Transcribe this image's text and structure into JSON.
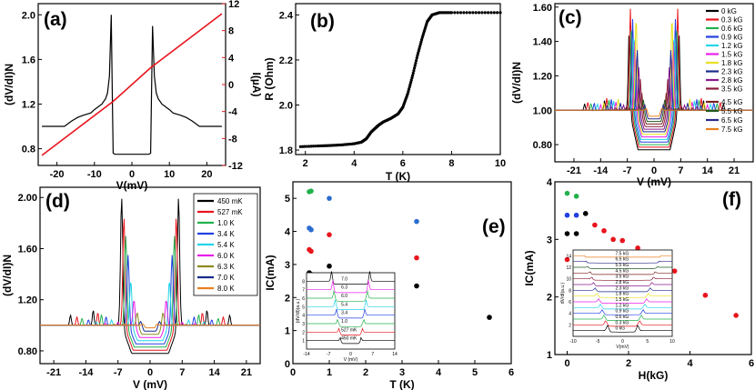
{
  "chart_data": [
    {
      "panel": "(a)",
      "type": "line",
      "xlabel": "V(mV)",
      "ylabel": "(dV/dI)N",
      "y2label": "I(µA)",
      "xlim": [
        -25,
        25
      ],
      "ylim": [
        0.65,
        2.1
      ],
      "y2lim": [
        -12,
        12
      ],
      "xticks": [
        "-20",
        "-10",
        "0",
        "10",
        "20"
      ],
      "yticks": [
        "0.8",
        "1.2",
        "1.6",
        "2.0"
      ],
      "y2ticks": [
        "-12",
        "-8",
        "-4",
        "0",
        "4",
        "8",
        "12"
      ],
      "series": [
        {
          "name": "dV/dI",
          "color": "#000000",
          "x": [
            -24,
            -18,
            -16,
            -14.5,
            -13,
            -11,
            -10,
            -8,
            -7,
            -6.5,
            -6,
            -5.5,
            -5.2,
            -5,
            -4.5,
            -4,
            4,
            4.5,
            5,
            5.2,
            5.5,
            6,
            6.5,
            7,
            8,
            10,
            11,
            13,
            14.5,
            16,
            18,
            24
          ],
          "y": [
            1.0,
            1.0,
            1.05,
            1.08,
            1.1,
            1.12,
            1.15,
            1.2,
            1.25,
            1.3,
            1.45,
            2.0,
            1.2,
            0.76,
            0.75,
            0.75,
            0.75,
            0.75,
            0.76,
            1.2,
            1.9,
            1.45,
            1.3,
            1.25,
            1.2,
            1.15,
            1.12,
            1.1,
            1.08,
            1.05,
            1.0,
            1.0
          ]
        },
        {
          "name": "I-V",
          "color": "#e8141c",
          "axis": "right",
          "x": [
            -24,
            -5,
            5,
            24
          ],
          "y": [
            -10.5,
            -2.5,
            2.5,
            10.5
          ]
        }
      ]
    },
    {
      "panel": "(b)",
      "type": "scatter",
      "xlabel": "T (K)",
      "ylabel": "R (Ohm)",
      "xlim": [
        1.6,
        10
      ],
      "ylim": [
        1.78,
        2.45
      ],
      "xticks": [
        "2",
        "4",
        "6",
        "8",
        "10"
      ],
      "yticks": [
        "1.8",
        "2.0",
        "2.2",
        "2.4"
      ],
      "x": [
        1.8,
        2.5,
        3.0,
        3.5,
        4.0,
        4.3,
        4.5,
        4.7,
        4.9,
        5.0,
        5.2,
        5.5,
        5.8,
        6.0,
        6.2,
        6.4,
        6.6,
        6.8,
        7.0,
        7.2,
        7.5,
        8.0,
        9.0,
        10.0
      ],
      "y": [
        1.815,
        1.818,
        1.82,
        1.823,
        1.828,
        1.835,
        1.85,
        1.88,
        1.9,
        1.91,
        1.925,
        1.94,
        1.96,
        1.99,
        2.05,
        2.13,
        2.22,
        2.3,
        2.37,
        2.4,
        2.41,
        2.41,
        2.41,
        2.41
      ]
    },
    {
      "panel": "(c)",
      "type": "line",
      "xlabel": "V (mV)",
      "ylabel": "(dV/dI)N",
      "xlim": [
        -26,
        26
      ],
      "ylim": [
        0.7,
        1.62
      ],
      "xticks": [
        "-21",
        "-14",
        "-7",
        "0",
        "7",
        "14",
        "21"
      ],
      "yticks": [
        "0.80",
        "1.00",
        "1.20",
        "1.40",
        "1.60"
      ],
      "series": [
        {
          "name": "0 kG",
          "color": "#000000",
          "peak": 1.47,
          "gap": 6.5
        },
        {
          "name": "0.3 kG",
          "color": "#e8141c",
          "peak": 1.59,
          "gap": 6.2
        },
        {
          "name": "0.6 kG",
          "color": "#22b14c",
          "peak": 1.5,
          "gap": 5.9
        },
        {
          "name": "0.9 kG",
          "color": "#2340e0",
          "peak": 1.53,
          "gap": 5.6
        },
        {
          "name": "1.2 kG",
          "color": "#24d4e8",
          "peak": 1.45,
          "gap": 5.3
        },
        {
          "name": "1.5 kG",
          "color": "#e820e8",
          "peak": 1.4,
          "gap": 5.0
        },
        {
          "name": "1.8 kG",
          "color": "#e8e020",
          "peak": 1.55,
          "gap": 4.7
        },
        {
          "name": "2.3 kG",
          "color": "#1a2a8a",
          "peak": 1.35,
          "gap": 4.4
        },
        {
          "name": "2.8 kG",
          "color": "#8a1a8a",
          "peak": 1.25,
          "gap": 4.0
        },
        {
          "name": "3.5 kG",
          "color": "#8a1a3a",
          "peak": 1.18,
          "gap": 3.6
        },
        {
          "name": "4.5 kG",
          "color": "#7a2020",
          "peak": 1.1,
          "gap": 3.2
        },
        {
          "name": "5.5 kG",
          "color": "#205a20",
          "peak": 1.06,
          "gap": 2.8
        },
        {
          "name": "6.5 kG",
          "color": "#2a2a8a",
          "peak": 1.03,
          "gap": 2.4
        },
        {
          "name": "7.5 kG",
          "color": "#e88020",
          "peak": 1.01,
          "gap": 2.0
        }
      ]
    },
    {
      "panel": "(d)",
      "type": "line",
      "xlabel": "V (mV)",
      "ylabel": "(dV/dI)N",
      "xlim": [
        -24,
        24
      ],
      "ylim": [
        0.7,
        2.08
      ],
      "xticks": [
        "-21",
        "-14",
        "-7",
        "0",
        "7",
        "14",
        "21"
      ],
      "yticks": [
        "0.80",
        "1.20",
        "1.60",
        "2.00"
      ],
      "series": [
        {
          "name": "450 mK",
          "color": "#000000",
          "peak": 2.0,
          "gap": 6.2
        },
        {
          "name": "527 mK",
          "color": "#e8141c",
          "peak": 1.85,
          "gap": 5.7
        },
        {
          "name": "1.0 K",
          "color": "#22b14c",
          "peak": 1.7,
          "gap": 5.3
        },
        {
          "name": "3.4 K",
          "color": "#2340e0",
          "peak": 1.55,
          "gap": 4.8
        },
        {
          "name": "5.4 K",
          "color": "#24d4e8",
          "peak": 1.35,
          "gap": 4.2
        },
        {
          "name": "6.0 K",
          "color": "#e820e8",
          "peak": 1.2,
          "gap": 3.5
        },
        {
          "name": "6.3 K",
          "color": "#8a8a20",
          "peak": 1.1,
          "gap": 2.8
        },
        {
          "name": "7.0 K",
          "color": "#1a2a8a",
          "peak": 1.03,
          "gap": 2.0
        },
        {
          "name": "8.0 K",
          "color": "#e88020",
          "peak": 1.01,
          "gap": 1.5
        }
      ]
    },
    {
      "panel": "(e)",
      "type": "scatter",
      "xlabel": "T (K)",
      "ylabel": "IC(mA)",
      "xlim": [
        0,
        6
      ],
      "ylim": [
        0,
        5.5
      ],
      "xticks": [
        "0",
        "1",
        "2",
        "3",
        "4",
        "5",
        "6"
      ],
      "yticks": [
        "0",
        "1",
        "2",
        "3",
        "4",
        "5"
      ],
      "series": [
        {
          "name": "black",
          "color": "#000000",
          "x": [
            0.45,
            0.5,
            1.0,
            3.4,
            5.4
          ],
          "y": [
            2.75,
            2.7,
            2.95,
            2.35,
            1.4
          ]
        },
        {
          "name": "red",
          "color": "#e8141c",
          "x": [
            0.45,
            0.5,
            1.0,
            3.4
          ],
          "y": [
            3.45,
            3.4,
            3.9,
            3.2
          ]
        },
        {
          "name": "blue",
          "color": "#2a6cd0",
          "x": [
            0.45,
            0.5,
            1.0,
            3.4
          ],
          "y": [
            4.1,
            4.05,
            5.0,
            4.3
          ]
        },
        {
          "name": "green",
          "color": "#22b14c",
          "x": [
            0.45,
            0.5
          ],
          "y": [
            5.2,
            5.22
          ]
        }
      ],
      "inset": {
        "xlabel": "V (mV)",
        "ylabel": "(dV/dI)(a.u.)",
        "xticks": [
          "-14",
          "-7",
          "0",
          "7",
          "14"
        ],
        "yticks": [
          "1",
          "2",
          "3",
          "4",
          "5",
          "6",
          "7",
          "8"
        ],
        "curves": [
          "7.0",
          "6.3",
          "6.0",
          "5.4",
          "3.4",
          "1.0",
          "527 mK",
          "450 mK"
        ],
        "colors": [
          "#000000",
          "#e820e8",
          "#22b14c",
          "#24d4e8",
          "#2340e0",
          "#22b14c",
          "#e8141c",
          "#000000"
        ]
      }
    },
    {
      "panel": "(f)",
      "type": "scatter",
      "xlabel": "H(kG)",
      "ylabel": "IC(mA)",
      "xlim": [
        -0.4,
        6
      ],
      "ylim": [
        1,
        4
      ],
      "xticks": [
        "0",
        "2",
        "4",
        "6"
      ],
      "yticks": [
        "1",
        "2",
        "3",
        "4"
      ],
      "series": [
        {
          "name": "green",
          "color": "#22b14c",
          "x": [
            0,
            0.3
          ],
          "y": [
            3.8,
            3.75
          ]
        },
        {
          "name": "blue",
          "color": "#2340e0",
          "x": [
            0,
            0.3
          ],
          "y": [
            3.42,
            3.42
          ]
        },
        {
          "name": "black",
          "color": "#000000",
          "x": [
            0,
            0.3,
            0.6
          ],
          "y": [
            3.1,
            3.1,
            3.45
          ]
        },
        {
          "name": "red",
          "color": "#e8141c",
          "x": [
            0,
            0.3,
            0.9,
            1.2,
            1.5,
            1.8,
            2.3,
            2.8,
            3.5,
            4.5,
            5.5
          ],
          "y": [
            2.65,
            2.6,
            3.25,
            3.15,
            3.0,
            2.98,
            2.85,
            2.65,
            2.45,
            2.03,
            1.68
          ]
        }
      ],
      "inset": {
        "xlabel": "V(mV)",
        "ylabel": "dV/dI(a.u.)",
        "xticks": [
          "-10",
          "-5",
          "0",
          "5",
          "10"
        ],
        "yticks": [
          "2",
          "4",
          "6",
          "8",
          "10",
          "12",
          "14"
        ],
        "curves": [
          "7.5 kG",
          "6.5 kG",
          "5.5 kG",
          "4.5 kG",
          "3.5 kG",
          "2.8 kG",
          "2.3 kG",
          "1.8 kG",
          "1.5 kG",
          "1.2 kG",
          "0.9 kG",
          "0.6 kG",
          "0.3 kG",
          "0 kG"
        ],
        "colors": [
          "#e88020",
          "#2a2a8a",
          "#205a20",
          "#7a2020",
          "#8a1a3a",
          "#8a1a8a",
          "#1a2a8a",
          "#e8e020",
          "#e820e8",
          "#24d4e8",
          "#2340e0",
          "#22b14c",
          "#e8141c",
          "#000000"
        ]
      }
    }
  ]
}
